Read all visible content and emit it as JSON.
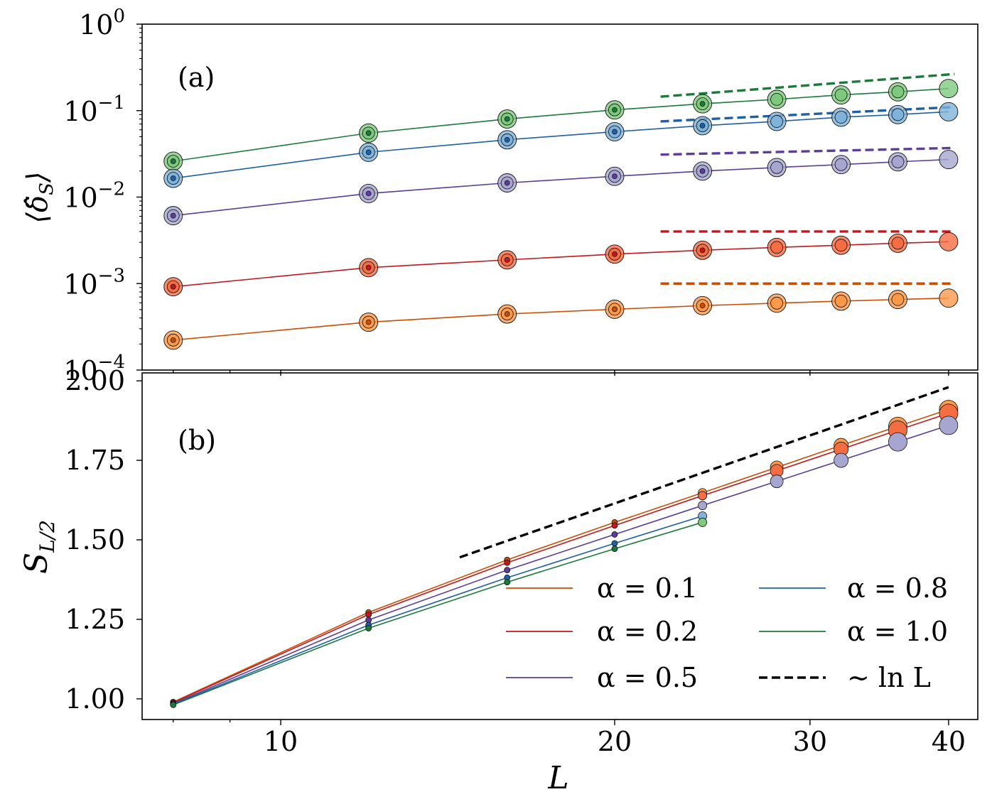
{
  "chart_data": [
    {
      "panel": "a",
      "type": "line",
      "panel_label": "(a)",
      "ylabel": "⟨δ̂_S⟩",
      "xlabel": "",
      "xscale": "log",
      "yscale": "log",
      "xlim": [
        7.5,
        42.5
      ],
      "ylim": [
        0.0001,
        1
      ],
      "ytick_labels": [
        {
          "value": 1,
          "base": "10",
          "exp": "0"
        },
        {
          "value": 0.1,
          "base": "10",
          "exp": "−1"
        },
        {
          "value": 0.01,
          "base": "10",
          "exp": "−2"
        },
        {
          "value": 0.001,
          "base": "10",
          "exp": "−3"
        },
        {
          "value": 0.0001,
          "base": "10",
          "exp": "−4"
        }
      ],
      "series": [
        {
          "name": "α = 1.0",
          "color": "#1a7a3a",
          "fill": "#7fc97f",
          "x": [
            8,
            12,
            16,
            20,
            24,
            28,
            32,
            36,
            40
          ],
          "y": [
            0.026,
            0.055,
            0.08,
            0.102,
            0.12,
            0.135,
            0.152,
            0.165,
            0.18
          ],
          "fit_x": [
            22,
            40.5
          ],
          "fit_y": [
            0.145,
            0.265
          ]
        },
        {
          "name": "α = 0.8",
          "color": "#1f5fa8",
          "fill": "#7fb3d9",
          "x": [
            8,
            12,
            16,
            20,
            24,
            28,
            32,
            36,
            40
          ],
          "y": [
            0.0165,
            0.033,
            0.046,
            0.057,
            0.067,
            0.075,
            0.084,
            0.09,
            0.097
          ],
          "fit_x": [
            22,
            40.5
          ],
          "fit_y": [
            0.075,
            0.11
          ]
        },
        {
          "name": "α = 0.5",
          "color": "#5e3c99",
          "fill": "#a6a6d0",
          "x": [
            8,
            12,
            16,
            20,
            24,
            28,
            32,
            36,
            40
          ],
          "y": [
            0.0061,
            0.011,
            0.0146,
            0.0174,
            0.02,
            0.022,
            0.0238,
            0.0256,
            0.0272
          ],
          "fit_x": [
            22,
            40.5
          ],
          "fit_y": [
            0.031,
            0.037
          ]
        },
        {
          "name": "α = 0.2",
          "color": "#c0181e",
          "fill": "#f46d43",
          "x": [
            8,
            12,
            16,
            20,
            24,
            28,
            32,
            36,
            40
          ],
          "y": [
            0.00092,
            0.00153,
            0.00188,
            0.00219,
            0.00243,
            0.00262,
            0.00278,
            0.00293,
            0.00305
          ],
          "fit_x": [
            22,
            40.5
          ],
          "fit_y": [
            0.004,
            0.004
          ]
        },
        {
          "name": "α = 0.1",
          "color": "#cc4c02",
          "fill": "#fd9a4a",
          "x": [
            8,
            12,
            16,
            20,
            24,
            28,
            32,
            36,
            40
          ],
          "y": [
            0.000222,
            0.000358,
            0.000445,
            0.000505,
            0.000556,
            0.000594,
            0.000627,
            0.000655,
            0.00068
          ],
          "fit_x": [
            22,
            40.5
          ],
          "fit_y": [
            0.001,
            0.001
          ]
        }
      ]
    },
    {
      "panel": "b",
      "type": "line",
      "panel_label": "(b)",
      "ylabel": "S_L/2",
      "xlabel": "L",
      "xscale": "log",
      "yscale": "linear",
      "xlim": [
        7.5,
        42.5
      ],
      "ylim": [
        0.935,
        2.025
      ],
      "yticks": [
        1.0,
        1.25,
        1.5,
        1.75,
        2.0
      ],
      "ytick_labels": [
        "1.00",
        "1.25",
        "1.50",
        "1.75",
        "2.00"
      ],
      "xticks": [
        10,
        20,
        30,
        40
      ],
      "xtick_labels": [
        "10",
        "20",
        "30",
        "40"
      ],
      "series": [
        {
          "name": "α = 0.1",
          "color": "#cc4c02",
          "fill": "#fd9a4a",
          "x": [
            8,
            12,
            16,
            20,
            24,
            28,
            32,
            36,
            40
          ],
          "y": [
            0.99,
            1.272,
            1.437,
            1.555,
            1.648,
            1.728,
            1.797,
            1.857,
            1.91
          ]
        },
        {
          "name": "α = 0.2",
          "color": "#c0181e",
          "fill": "#f46d43",
          "x": [
            8,
            12,
            16,
            20,
            24,
            28,
            32,
            36,
            40
          ],
          "y": [
            0.988,
            1.265,
            1.428,
            1.545,
            1.639,
            1.717,
            1.785,
            1.845,
            1.898
          ]
        },
        {
          "name": "α = 0.5",
          "color": "#5e3c99",
          "fill": "#a6a6d0",
          "x": [
            8,
            12,
            16,
            20,
            24,
            28,
            32,
            36,
            40
          ],
          "y": [
            0.985,
            1.248,
            1.405,
            1.517,
            1.608,
            1.684,
            1.75,
            1.808,
            1.86
          ]
        },
        {
          "name": "α = 0.8",
          "color": "#1f5fa8",
          "fill": "#7fb3d9",
          "x": [
            8,
            12,
            16,
            20,
            24
          ],
          "y": [
            0.983,
            1.232,
            1.381,
            1.489,
            1.575
          ]
        },
        {
          "name": "α = 1.0",
          "color": "#1a7a3a",
          "fill": "#7fc97f",
          "x": [
            8,
            12,
            16,
            20,
            24
          ],
          "y": [
            0.981,
            1.222,
            1.367,
            1.472,
            1.555
          ]
        }
      ],
      "reference_line": {
        "name": "∼ ln L",
        "x": [
          14.5,
          40
        ],
        "y": [
          1.445,
          1.98
        ]
      },
      "legend": {
        "placement": "lower-right",
        "entries": [
          {
            "label": "α = 0.1",
            "color": "#cc4c02",
            "style": "solid"
          },
          {
            "label": "α = 0.8",
            "color": "#1f5fa8",
            "style": "solid"
          },
          {
            "label": "α = 0.2",
            "color": "#c0181e",
            "style": "solid"
          },
          {
            "label": "α = 1.0",
            "color": "#1a7a3a",
            "style": "solid"
          },
          {
            "label": "α = 0.5",
            "color": "#5e3c99",
            "style": "solid"
          },
          {
            "label": "∼ ln L",
            "color": "#000000",
            "style": "dashed"
          }
        ]
      }
    }
  ]
}
